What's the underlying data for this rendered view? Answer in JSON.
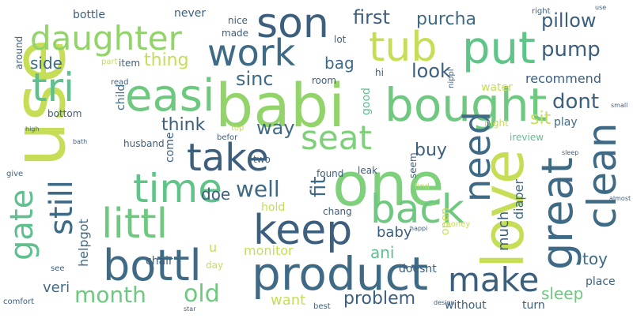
{
  "words": [
    {
      "text": "use",
      "color": "#c5de56"
    },
    {
      "text": "babi",
      "color": "#92d36a"
    },
    {
      "text": "one",
      "color": "#7fd07a"
    },
    {
      "text": "love",
      "color": "#c5de56"
    },
    {
      "text": "product",
      "color": "#3f6a86"
    },
    {
      "text": "bought",
      "color": "#6ec87f"
    },
    {
      "text": "tub",
      "color": "#c5de56"
    },
    {
      "text": "put",
      "color": "#5fc488"
    },
    {
      "text": "son",
      "color": "#3d5f7e"
    },
    {
      "text": "easi",
      "color": "#6ec87f"
    },
    {
      "text": "tri",
      "color": "#5fbf8e"
    },
    {
      "text": "daughter",
      "color": "#92d36a"
    },
    {
      "text": "work",
      "color": "#3f6a86"
    },
    {
      "text": "time",
      "color": "#5fc488"
    },
    {
      "text": "littl",
      "color": "#6ec87f"
    },
    {
      "text": "bottl",
      "color": "#3f6a86"
    },
    {
      "text": "keep",
      "color": "#3d5f7e"
    },
    {
      "text": "back",
      "color": "#6ec87f"
    },
    {
      "text": "great",
      "color": "#3f6a86"
    },
    {
      "text": "clean",
      "color": "#3f6a86"
    },
    {
      "text": "need",
      "color": "#3f6a86"
    },
    {
      "text": "take",
      "color": "#3d5f7e"
    },
    {
      "text": "make",
      "color": "#3d5f7e"
    },
    {
      "text": "seat",
      "color": "#7fd07a"
    },
    {
      "text": "gate",
      "color": "#5fbf8e"
    },
    {
      "text": "still",
      "color": "#3f6a86"
    },
    {
      "text": "month",
      "color": "#6ec87f"
    },
    {
      "text": "old",
      "color": "#6ec87f"
    },
    {
      "text": "well",
      "color": "#3f6a86"
    },
    {
      "text": "pump",
      "color": "#3d5f7e"
    },
    {
      "text": "pillow",
      "color": "#3d5f7e"
    },
    {
      "text": "purcha",
      "color": "#3f6a86"
    },
    {
      "text": "first",
      "color": "#3d5f7e"
    },
    {
      "text": "dont",
      "color": "#3d5f7e"
    },
    {
      "text": "look",
      "color": "#3d5f7e"
    },
    {
      "text": "sinc",
      "color": "#3f6a86"
    },
    {
      "text": "thing",
      "color": "#c5de56"
    },
    {
      "text": "side",
      "color": "#3f6a86"
    },
    {
      "text": "bag",
      "color": "#3f6a86"
    },
    {
      "text": "way",
      "color": "#3f6a86"
    },
    {
      "text": "think",
      "color": "#3d5f7e"
    },
    {
      "text": "buy",
      "color": "#3d5f7e"
    },
    {
      "text": "sit",
      "color": "#c5de56"
    },
    {
      "text": "problem",
      "color": "#3d5f7e"
    },
    {
      "text": "want",
      "color": "#c5de56"
    },
    {
      "text": "sleep",
      "color": "#6ec87f"
    },
    {
      "text": "toy",
      "color": "#3f6a86"
    },
    {
      "text": "ani",
      "color": "#5fbf8e"
    },
    {
      "text": "baby",
      "color": "#3d5f7e"
    },
    {
      "text": "veri",
      "color": "#3f6a86"
    },
    {
      "text": "fit",
      "color": "#3f6a86"
    },
    {
      "text": "doe",
      "color": "#3d5f7e"
    },
    {
      "text": "much",
      "color": "#3d5f7e"
    },
    {
      "text": "diaper",
      "color": "#3f6a86"
    },
    {
      "text": "recommend",
      "color": "#3d5f7e"
    },
    {
      "text": "monitor",
      "color": "#c5de56"
    },
    {
      "text": "helpgot",
      "color": "#3f6a86"
    },
    {
      "text": "hold",
      "color": "#c5de56"
    },
    {
      "text": "doesnt",
      "color": "#3d5f7e"
    },
    {
      "text": "place",
      "color": "#3d5f7e"
    },
    {
      "text": "without",
      "color": "#3d5f7e"
    },
    {
      "text": "turn",
      "color": "#3d5f7e"
    },
    {
      "text": "water",
      "color": "#c5de56"
    },
    {
      "text": "play",
      "color": "#3f6a86"
    },
    {
      "text": "bottle",
      "color": "#3d5f7e"
    },
    {
      "text": "never",
      "color": "#3d5f7e"
    },
    {
      "text": "child",
      "color": "#3f6a86"
    },
    {
      "text": "room",
      "color": "#3d5f7e"
    },
    {
      "text": "come",
      "color": "#3d5f7e"
    },
    {
      "text": "chair",
      "color": "#3d5f7e"
    },
    {
      "text": "husband",
      "color": "#3d5f7e"
    },
    {
      "text": "two",
      "color": "#3d5f7e"
    },
    {
      "text": "found",
      "color": "#3d5f7e"
    },
    {
      "text": "leak",
      "color": "#3d5f7e"
    },
    {
      "text": "seem",
      "color": "#3d5f7e"
    },
    {
      "text": "open",
      "color": "#c5de56"
    },
    {
      "text": "night",
      "color": "#c5de56"
    },
    {
      "text": "good",
      "color": "#5fbf8e"
    },
    {
      "text": "lot",
      "color": "#3d5f7e"
    },
    {
      "text": "made",
      "color": "#3d5f7e"
    },
    {
      "text": "nice",
      "color": "#3d5f7e"
    },
    {
      "text": "item",
      "color": "#3d5f7e"
    },
    {
      "text": "bottom",
      "color": "#3d5f7e"
    },
    {
      "text": "around",
      "color": "#3d5f7e"
    },
    {
      "text": "ireview",
      "color": "#5fbf8e"
    },
    {
      "text": "u",
      "color": "#c5de56"
    },
    {
      "text": "day",
      "color": "#c5de56"
    },
    {
      "text": "chang",
      "color": "#3d5f7e"
    },
    {
      "text": "hi",
      "color": "#3d5f7e"
    },
    {
      "text": "best",
      "color": "#3d5f7e"
    },
    {
      "text": "comfort",
      "color": "#3d5f7e"
    },
    {
      "text": "give",
      "color": "#3d5f7e"
    },
    {
      "text": "see",
      "color": "#3d5f7e"
    },
    {
      "text": "money",
      "color": "#c5de56"
    },
    {
      "text": "find",
      "color": "#c5de56"
    },
    {
      "text": "top",
      "color": "#c5de56"
    },
    {
      "text": "befor",
      "color": "#3d5f7e"
    },
    {
      "text": "right",
      "color": "#3d5f7e"
    },
    {
      "text": "part",
      "color": "#c5de56"
    },
    {
      "text": "read",
      "color": "#3d5f7e"
    },
    {
      "text": "design",
      "color": "#3d5f7e"
    },
    {
      "text": "happi",
      "color": "#3d5f7e"
    },
    {
      "text": "almost",
      "color": "#3d5f7e"
    },
    {
      "text": "sleep",
      "color": "#3d5f7e"
    },
    {
      "text": "nippl",
      "color": "#3d5f7e"
    },
    {
      "text": "bath",
      "color": "#3d5f7e"
    },
    {
      "text": "high",
      "color": "#3d5f7e"
    },
    {
      "text": "star",
      "color": "#3d5f7e"
    },
    {
      "text": "small",
      "color": "#3d5f7e"
    },
    {
      "text": "use",
      "color": "#3d5f7e"
    }
  ]
}
